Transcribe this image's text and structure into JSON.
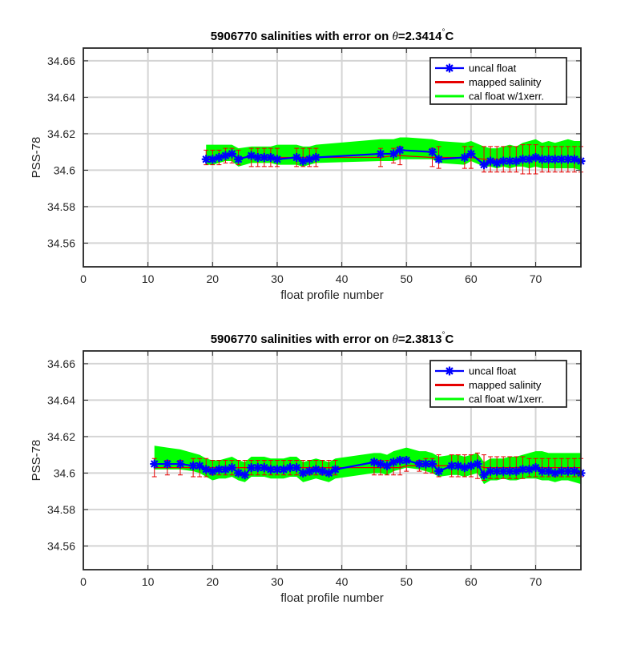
{
  "chart_data": [
    {
      "type": "line",
      "title": "5906770 salinities with error on θ=2.3414 °C",
      "title_prefix": "5906770 salinities with error on ",
      "title_theta": "θ",
      "title_value": "=2.3414",
      "title_degree": "°",
      "title_unit": "C",
      "xlabel": "float profile number",
      "ylabel": "PSS-78",
      "xlim": [
        0,
        77
      ],
      "ylim": [
        34.547,
        34.667
      ],
      "xticks": [
        "0",
        "10",
        "20",
        "30",
        "40",
        "50",
        "60",
        "70"
      ],
      "yticks": [
        "34.56",
        "34.58",
        "34.6",
        "34.62",
        "34.64",
        "34.66"
      ],
      "grid": true,
      "legend_position": "top-right",
      "legend": [
        "uncal float",
        "mapped salinity",
        "cal float w/1xerr."
      ],
      "series": [
        {
          "name": "uncal float",
          "color": "#0000ff",
          "x": [
            19,
            20,
            21,
            22,
            23,
            24,
            26,
            27,
            28,
            29,
            30,
            33,
            34,
            35,
            36,
            46,
            48,
            49,
            54,
            55,
            59,
            60,
            62,
            63,
            64,
            65,
            66,
            67,
            68,
            69,
            70,
            71,
            72,
            73,
            74,
            75,
            76,
            77
          ],
          "y": [
            34.606,
            34.606,
            34.607,
            34.608,
            34.609,
            34.606,
            34.608,
            34.607,
            34.607,
            34.607,
            34.606,
            34.607,
            34.605,
            34.606,
            34.607,
            34.609,
            34.609,
            34.611,
            34.61,
            34.606,
            34.607,
            34.609,
            34.603,
            34.605,
            34.604,
            34.605,
            34.605,
            34.605,
            34.606,
            34.606,
            34.607,
            34.606,
            34.606,
            34.606,
            34.606,
            34.606,
            34.606,
            34.605
          ]
        },
        {
          "name": "mapped salinity",
          "color": "#e60000",
          "x": [
            19,
            20,
            21,
            22,
            23,
            24,
            26,
            27,
            28,
            29,
            30,
            33,
            34,
            35,
            36,
            46,
            48,
            49,
            54,
            55,
            59,
            60,
            62,
            63,
            64,
            65,
            66,
            67,
            68,
            69,
            70,
            71,
            72,
            73,
            74,
            75,
            76,
            77
          ],
          "y": [
            34.607,
            34.607,
            34.607,
            34.608,
            34.608,
            34.607,
            34.607,
            34.607,
            34.607,
            34.607,
            34.607,
            34.607,
            34.607,
            34.607,
            34.607,
            34.607,
            34.608,
            34.608,
            34.607,
            34.607,
            34.607,
            34.607,
            34.606,
            34.606,
            34.606,
            34.606,
            34.606,
            34.606,
            34.606,
            34.606,
            34.606,
            34.606,
            34.606,
            34.606,
            34.606,
            34.606,
            34.606,
            34.606
          ],
          "err": [
            0.004,
            0.004,
            0.004,
            0.004,
            0.004,
            0.004,
            0.005,
            0.005,
            0.005,
            0.005,
            0.005,
            0.005,
            0.005,
            0.005,
            0.005,
            0.005,
            0.004,
            0.005,
            0.005,
            0.006,
            0.006,
            0.006,
            0.007,
            0.007,
            0.007,
            0.007,
            0.007,
            0.007,
            0.008,
            0.008,
            0.008,
            0.007,
            0.007,
            0.007,
            0.007,
            0.007,
            0.007,
            0.007
          ]
        },
        {
          "name": "cal float w/1xerr.",
          "color": "#00ff00",
          "x": [
            19,
            20,
            21,
            22,
            23,
            24,
            26,
            27,
            28,
            29,
            30,
            33,
            34,
            35,
            36,
            46,
            48,
            49,
            50,
            54,
            55,
            59,
            60,
            62,
            63,
            64,
            65,
            66,
            67,
            68,
            69,
            70,
            71,
            72,
            73,
            74,
            75,
            76,
            77
          ],
          "upper": [
            34.614,
            34.614,
            34.614,
            34.614,
            34.614,
            34.612,
            34.613,
            34.613,
            34.613,
            34.613,
            34.614,
            34.614,
            34.613,
            34.613,
            34.614,
            34.617,
            34.617,
            34.618,
            34.618,
            34.617,
            34.616,
            34.615,
            34.616,
            34.613,
            34.612,
            34.612,
            34.613,
            34.614,
            34.613,
            34.615,
            34.616,
            34.617,
            34.615,
            34.616,
            34.615,
            34.616,
            34.617,
            34.616,
            34.616
          ],
          "lower": [
            34.603,
            34.603,
            34.604,
            34.605,
            34.605,
            34.602,
            34.604,
            34.604,
            34.604,
            34.604,
            34.603,
            34.603,
            34.602,
            34.603,
            34.604,
            34.605,
            34.605,
            34.606,
            34.606,
            34.606,
            34.604,
            34.603,
            34.605,
            34.602,
            34.602,
            34.601,
            34.602,
            34.601,
            34.602,
            34.602,
            34.601,
            34.602,
            34.601,
            34.601,
            34.601,
            34.601,
            34.601,
            34.601,
            34.6
          ]
        }
      ]
    },
    {
      "type": "line",
      "title": "5906770 salinities with error on θ=2.3813 °C",
      "title_prefix": "5906770 salinities with error on ",
      "title_theta": "θ",
      "title_value": "=2.3813",
      "title_degree": "°",
      "title_unit": "C",
      "xlabel": "float profile number",
      "ylabel": "PSS-78",
      "xlim": [
        0,
        77
      ],
      "ylim": [
        34.547,
        34.667
      ],
      "xticks": [
        "0",
        "10",
        "20",
        "30",
        "40",
        "50",
        "60",
        "70"
      ],
      "yticks": [
        "34.56",
        "34.58",
        "34.6",
        "34.62",
        "34.64",
        "34.66"
      ],
      "grid": true,
      "legend_position": "top-right",
      "legend": [
        "uncal float",
        "mapped salinity",
        "cal float w/1xerr."
      ],
      "series": [
        {
          "name": "uncal float",
          "color": "#0000ff",
          "x": [
            11,
            13,
            15,
            17,
            18,
            19,
            20,
            21,
            22,
            23,
            24,
            25,
            26,
            27,
            28,
            29,
            30,
            31,
            32,
            33,
            34,
            35,
            36,
            37,
            38,
            39,
            45,
            46,
            47,
            48,
            49,
            50,
            52,
            53,
            54,
            55,
            57,
            58,
            59,
            60,
            61,
            62,
            63,
            64,
            65,
            66,
            67,
            68,
            69,
            70,
            71,
            72,
            73,
            74,
            75,
            76,
            77
          ],
          "y": [
            34.605,
            34.605,
            34.605,
            34.604,
            34.604,
            34.602,
            34.601,
            34.602,
            34.602,
            34.603,
            34.6,
            34.599,
            34.603,
            34.603,
            34.603,
            34.602,
            34.602,
            34.602,
            34.603,
            34.603,
            34.6,
            34.601,
            34.602,
            34.601,
            34.6,
            34.602,
            34.606,
            34.605,
            34.604,
            34.606,
            34.607,
            34.607,
            34.605,
            34.605,
            34.605,
            34.601,
            34.604,
            34.604,
            34.603,
            34.604,
            34.605,
            34.599,
            34.601,
            34.601,
            34.601,
            34.601,
            34.601,
            34.602,
            34.602,
            34.603,
            34.601,
            34.601,
            34.6,
            34.601,
            34.601,
            34.601,
            34.6
          ]
        },
        {
          "name": "mapped salinity",
          "color": "#e60000",
          "x": [
            11,
            13,
            15,
            17,
            18,
            19,
            20,
            21,
            22,
            23,
            24,
            25,
            26,
            27,
            28,
            29,
            30,
            31,
            32,
            33,
            34,
            35,
            36,
            37,
            38,
            39,
            45,
            46,
            47,
            48,
            49,
            50,
            52,
            53,
            54,
            55,
            57,
            58,
            59,
            60,
            61,
            62,
            63,
            64,
            65,
            66,
            67,
            68,
            69,
            70,
            71,
            72,
            73,
            74,
            75,
            76,
            77
          ],
          "y": [
            34.603,
            34.603,
            34.603,
            34.603,
            34.603,
            34.603,
            34.603,
            34.603,
            34.603,
            34.603,
            34.603,
            34.603,
            34.603,
            34.603,
            34.603,
            34.603,
            34.603,
            34.603,
            34.603,
            34.603,
            34.603,
            34.603,
            34.603,
            34.603,
            34.603,
            34.603,
            34.603,
            34.603,
            34.603,
            34.603,
            34.603,
            34.604,
            34.604,
            34.604,
            34.604,
            34.604,
            34.604,
            34.604,
            34.604,
            34.604,
            34.604,
            34.603,
            34.603,
            34.603,
            34.603,
            34.603,
            34.603,
            34.603,
            34.603,
            34.603,
            34.603,
            34.603,
            34.603,
            34.603,
            34.603,
            34.603,
            34.603
          ],
          "err": [
            0.005,
            0.004,
            0.004,
            0.005,
            0.005,
            0.005,
            0.004,
            0.004,
            0.004,
            0.004,
            0.004,
            0.004,
            0.004,
            0.004,
            0.004,
            0.004,
            0.004,
            0.004,
            0.004,
            0.004,
            0.004,
            0.004,
            0.004,
            0.004,
            0.004,
            0.004,
            0.004,
            0.004,
            0.004,
            0.004,
            0.004,
            0.003,
            0.003,
            0.004,
            0.004,
            0.006,
            0.006,
            0.006,
            0.006,
            0.006,
            0.007,
            0.007,
            0.006,
            0.006,
            0.006,
            0.006,
            0.006,
            0.006,
            0.005,
            0.005,
            0.005,
            0.005,
            0.005,
            0.005,
            0.005,
            0.005,
            0.005
          ]
        },
        {
          "name": "cal float w/1xerr.",
          "color": "#00ff00",
          "x": [
            11,
            13,
            15,
            17,
            18,
            19,
            20,
            21,
            22,
            23,
            24,
            25,
            26,
            27,
            28,
            29,
            30,
            31,
            32,
            33,
            34,
            35,
            36,
            37,
            38,
            39,
            45,
            46,
            47,
            48,
            49,
            50,
            52,
            53,
            54,
            55,
            57,
            58,
            59,
            60,
            61,
            62,
            63,
            64,
            65,
            66,
            67,
            68,
            69,
            70,
            71,
            72,
            73,
            74,
            75,
            76,
            77
          ],
          "upper": [
            34.615,
            34.614,
            34.613,
            34.611,
            34.61,
            34.608,
            34.607,
            34.607,
            34.608,
            34.609,
            34.607,
            34.606,
            34.609,
            34.609,
            34.609,
            34.608,
            34.608,
            34.608,
            34.609,
            34.609,
            34.606,
            34.607,
            34.608,
            34.607,
            34.606,
            34.608,
            34.611,
            34.611,
            34.61,
            34.612,
            34.613,
            34.614,
            34.612,
            34.612,
            34.611,
            34.609,
            34.61,
            34.61,
            34.609,
            34.61,
            34.611,
            34.606,
            34.608,
            34.608,
            34.608,
            34.609,
            34.609,
            34.61,
            34.611,
            34.612,
            34.612,
            34.611,
            34.611,
            34.611,
            34.611,
            34.611,
            34.611
          ],
          "lower": [
            34.602,
            34.602,
            34.602,
            34.601,
            34.6,
            34.598,
            34.596,
            34.597,
            34.597,
            34.598,
            34.596,
            34.595,
            34.598,
            34.598,
            34.598,
            34.597,
            34.597,
            34.597,
            34.598,
            34.598,
            34.595,
            34.596,
            34.597,
            34.596,
            34.595,
            34.597,
            34.6,
            34.6,
            34.599,
            34.601,
            34.602,
            34.603,
            34.602,
            34.601,
            34.6,
            34.598,
            34.599,
            34.599,
            34.598,
            34.599,
            34.6,
            34.594,
            34.596,
            34.596,
            34.597,
            34.596,
            34.596,
            34.597,
            34.597,
            34.597,
            34.596,
            34.596,
            34.595,
            34.596,
            34.596,
            34.595,
            34.594
          ]
        }
      ]
    }
  ]
}
